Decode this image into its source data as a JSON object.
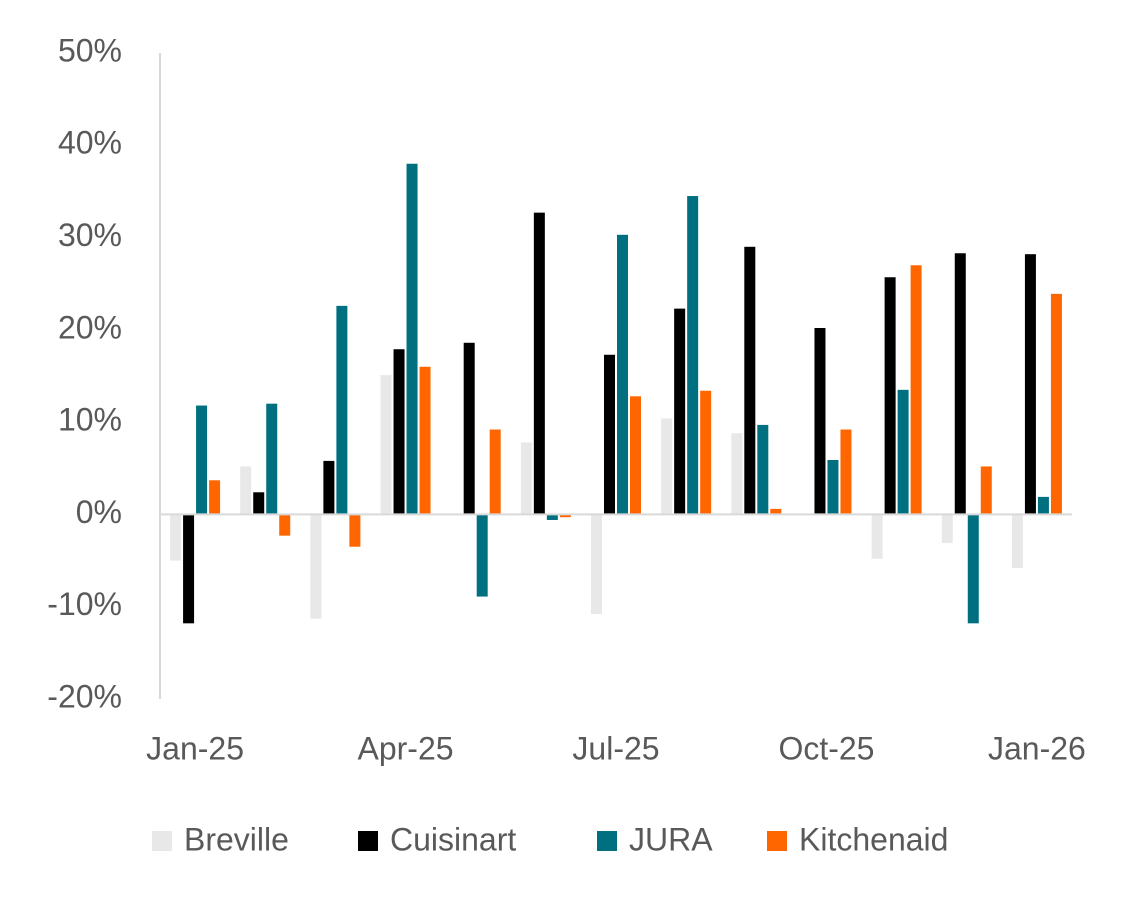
{
  "chart_data": {
    "type": "bar",
    "categories": [
      "Jan-25",
      null,
      null,
      "Apr-25",
      null,
      null,
      "Jul-25",
      null,
      null,
      "Oct-25",
      null,
      null,
      "Jan-26"
    ],
    "series": [
      {
        "name": "Breville",
        "color": "#e8e8e8",
        "values": [
          -5.0,
          5.2,
          -11.3,
          15.1,
          null,
          7.8,
          -10.8,
          10.4,
          8.8,
          null,
          -4.8,
          -3.1,
          -5.8
        ]
      },
      {
        "name": "Cuisinart",
        "color": "#000000",
        "values": [
          -11.8,
          2.4,
          5.8,
          17.9,
          18.6,
          32.7,
          17.3,
          22.3,
          29.0,
          20.2,
          25.7,
          28.3,
          28.2
        ]
      },
      {
        "name": "JURA",
        "color": "#007080",
        "values": [
          11.8,
          12.0,
          22.6,
          38.0,
          -8.9,
          -0.6,
          30.3,
          34.5,
          9.7,
          5.9,
          13.5,
          -11.8,
          1.9
        ]
      },
      {
        "name": "Kitchenaid",
        "color": "#ff6600",
        "values": [
          3.7,
          -2.3,
          -3.5,
          16.0,
          9.2,
          -0.3,
          12.8,
          13.4,
          0.6,
          9.2,
          27.0,
          5.2,
          23.9
        ]
      }
    ],
    "ylim": [
      -20,
      50
    ],
    "yticks": [
      {
        "value": -20,
        "label": "-20%"
      },
      {
        "value": -10,
        "label": "-10%"
      },
      {
        "value": 0,
        "label": "0%"
      },
      {
        "value": 10,
        "label": "10%"
      },
      {
        "value": 20,
        "label": "20%"
      },
      {
        "value": 30,
        "label": "30%"
      },
      {
        "value": 40,
        "label": "40%"
      },
      {
        "value": 50,
        "label": "50%"
      }
    ],
    "grid": false,
    "legend": "bottom"
  }
}
